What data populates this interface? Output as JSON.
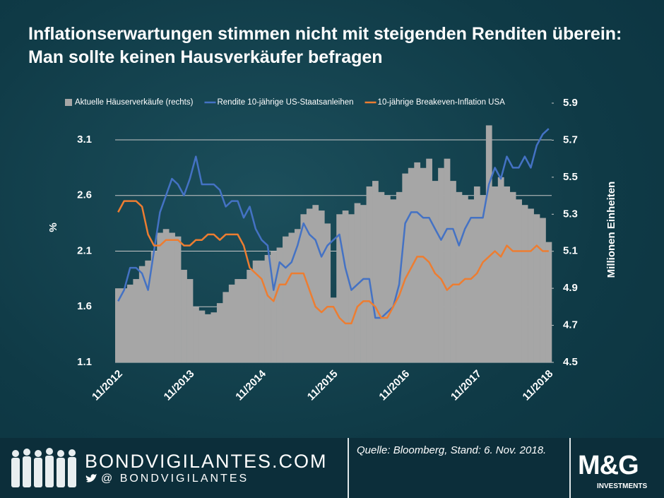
{
  "chart_data": {
    "type": "combo",
    "title": "Inflationserwartungen stimmen nicht mit steigenden Renditen überein: Man sollte keinen Hausverkäufer befragen",
    "ylabel": "%",
    "y2label": "Millionen Einheiten",
    "categories": [
      "11/2012",
      null,
      null,
      null,
      null,
      null,
      null,
      null,
      null,
      null,
      null,
      null,
      "11/2013",
      null,
      null,
      null,
      null,
      null,
      null,
      null,
      null,
      null,
      null,
      null,
      "11/2014",
      null,
      null,
      null,
      null,
      null,
      null,
      null,
      null,
      null,
      null,
      null,
      "11/2015",
      null,
      null,
      null,
      null,
      null,
      null,
      null,
      null,
      null,
      null,
      null,
      "11/2016",
      null,
      null,
      null,
      null,
      null,
      null,
      null,
      null,
      null,
      null,
      null,
      "11/2017",
      null,
      null,
      null,
      null,
      null,
      null,
      null,
      null,
      null,
      null,
      null,
      "11/2018"
    ],
    "ylim": [
      1.1,
      3.43
    ],
    "yticks": [
      1.1,
      1.6,
      2.1,
      2.6,
      3.1
    ],
    "y2lim": [
      4.5,
      5.9
    ],
    "y2ticks": [
      4.5,
      4.7,
      4.9,
      5.1,
      5.3,
      5.5,
      5.7,
      5.9
    ],
    "grid": true,
    "legend": "top",
    "series": [
      {
        "name": "Aktuelle Häuserverkäufe (rechts)",
        "type": "bar",
        "axis": "y2",
        "color": "#a6a6a6",
        "values": [
          4.9,
          4.9,
          4.92,
          4.95,
          5.02,
          5.05,
          5.1,
          5.2,
          5.22,
          5.2,
          5.18,
          5.0,
          4.95,
          4.8,
          4.78,
          4.76,
          4.77,
          4.82,
          4.88,
          4.92,
          4.95,
          4.95,
          5.0,
          5.05,
          5.05,
          5.08,
          5.1,
          5.12,
          5.18,
          5.2,
          5.22,
          5.3,
          5.33,
          5.35,
          5.32,
          5.25,
          4.85,
          5.3,
          5.32,
          5.3,
          5.36,
          5.35,
          5.45,
          5.48,
          5.42,
          5.4,
          5.38,
          5.42,
          5.52,
          5.55,
          5.58,
          5.55,
          5.6,
          5.48,
          5.55,
          5.6,
          5.48,
          5.42,
          5.4,
          5.38,
          5.45,
          5.4,
          5.78,
          5.45,
          5.5,
          5.45,
          5.42,
          5.38,
          5.35,
          5.33,
          5.3,
          5.28,
          5.15
        ]
      },
      {
        "name": "Rendite 10-jährige US-Staatsanleihen",
        "type": "line",
        "color": "#4472c4",
        "values": [
          1.65,
          1.75,
          1.95,
          1.95,
          1.9,
          1.75,
          2.1,
          2.45,
          2.6,
          2.75,
          2.7,
          2.6,
          2.75,
          2.95,
          2.7,
          2.7,
          2.7,
          2.65,
          2.5,
          2.55,
          2.55,
          2.4,
          2.5,
          2.3,
          2.2,
          2.15,
          1.75,
          2.0,
          1.95,
          2.0,
          2.15,
          2.35,
          2.25,
          2.2,
          2.05,
          2.15,
          2.2,
          2.25,
          1.95,
          1.75,
          1.8,
          1.85,
          1.85,
          1.5,
          1.5,
          1.55,
          1.6,
          1.8,
          2.35,
          2.45,
          2.45,
          2.4,
          2.4,
          2.3,
          2.2,
          2.3,
          2.3,
          2.15,
          2.3,
          2.4,
          2.4,
          2.4,
          2.7,
          2.85,
          2.75,
          2.95,
          2.85,
          2.85,
          2.95,
          2.85,
          3.05,
          3.15,
          3.2
        ]
      },
      {
        "name": "10-jährige Breakeven-Inflation USA",
        "type": "line",
        "color": "#ed7d31",
        "values": [
          2.45,
          2.55,
          2.55,
          2.55,
          2.5,
          2.25,
          2.15,
          2.15,
          2.2,
          2.2,
          2.2,
          2.15,
          2.15,
          2.2,
          2.2,
          2.25,
          2.25,
          2.2,
          2.25,
          2.25,
          2.25,
          2.15,
          1.95,
          1.9,
          1.85,
          1.7,
          1.65,
          1.8,
          1.8,
          1.9,
          1.9,
          1.9,
          1.75,
          1.6,
          1.55,
          1.6,
          1.6,
          1.5,
          1.45,
          1.45,
          1.6,
          1.65,
          1.65,
          1.6,
          1.5,
          1.5,
          1.6,
          1.7,
          1.85,
          1.95,
          2.05,
          2.05,
          2.0,
          1.9,
          1.85,
          1.75,
          1.8,
          1.8,
          1.85,
          1.85,
          1.9,
          2.0,
          2.05,
          2.1,
          2.05,
          2.15,
          2.1,
          2.1,
          2.1,
          2.1,
          2.15,
          2.1,
          2.1
        ]
      }
    ]
  },
  "footer": {
    "site": "BONDVIGILANTES.COM",
    "handle": "@ BONDVIGILANTES",
    "source": "Quelle: Bloomberg, Stand: 6. Nov. 2018.",
    "logo": "M&G",
    "logo_sub": "INVESTMENTS"
  }
}
